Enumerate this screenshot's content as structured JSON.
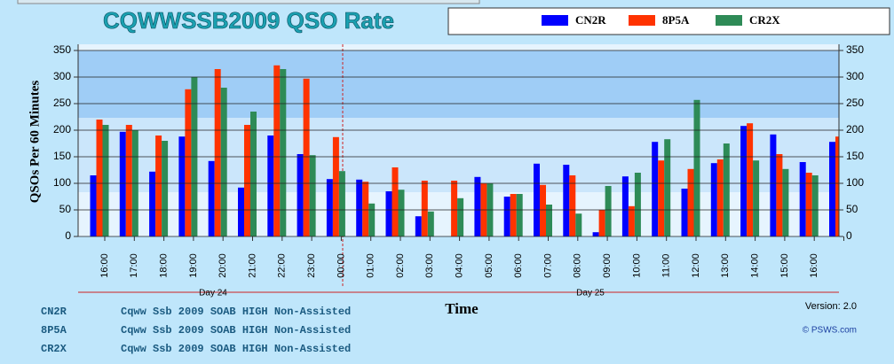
{
  "chart_data": {
    "type": "bar",
    "title": "CQWWSSB2009  QSO Rate",
    "ylabel": "QSOs Per 60 Minutes",
    "xlabel": "Time",
    "categories": [
      "16:00",
      "17:00",
      "18:00",
      "19:00",
      "20:00",
      "21:00",
      "22:00",
      "23:00",
      "00:00",
      "01:00",
      "02:00",
      "03:00",
      "04:00",
      "05:00",
      "06:00",
      "07:00",
      "08:00",
      "09:00",
      "10:00",
      "11:00",
      "12:00",
      "13:00",
      "14:00",
      "15:00",
      "16:00",
      null
    ],
    "day_labels": [
      "Day 24",
      "Day 25"
    ],
    "series": [
      {
        "name": "CN2R",
        "color": "#0000ff",
        "values": [
          115,
          197,
          122,
          188,
          142,
          92,
          190,
          155,
          108,
          107,
          85,
          38,
          0,
          112,
          75,
          137,
          135,
          8,
          113,
          178,
          90,
          138,
          208,
          192,
          140,
          178
        ]
      },
      {
        "name": "8P5A",
        "color": "#ff3300",
        "values": [
          220,
          210,
          190,
          277,
          315,
          210,
          322,
          297,
          187,
          103,
          130,
          105,
          105,
          100,
          80,
          97,
          115,
          50,
          57,
          143,
          127,
          145,
          213,
          155,
          120,
          188
        ]
      },
      {
        "name": "CR2X",
        "color": "#2e8b57",
        "values": [
          210,
          200,
          180,
          300,
          280,
          235,
          315,
          153,
          123,
          62,
          88,
          47,
          72,
          100,
          80,
          60,
          43,
          95,
          120,
          183,
          257,
          175,
          143,
          127,
          115,
          null
        ]
      }
    ],
    "ylim": [
      0,
      350
    ],
    "yticks": [
      0,
      50,
      100,
      150,
      200,
      250,
      300,
      350
    ],
    "grid": true,
    "stations": [
      {
        "call": "CN2R",
        "desc": "Cqww Ssb 2009 SOAB HIGH Non-Assisted"
      },
      {
        "call": "8P5A",
        "desc": "Cqww Ssb 2009 SOAB HIGH Non-Assisted"
      },
      {
        "call": "CR2X",
        "desc": "Cqww Ssb 2009 SOAB HIGH Non-Assisted"
      }
    ],
    "version": "Version:  2.0",
    "credit": "© PSWS.com"
  }
}
